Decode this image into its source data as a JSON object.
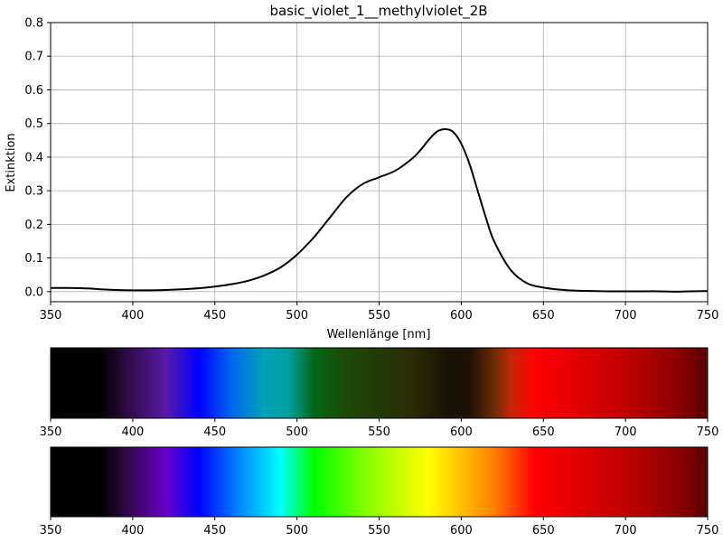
{
  "chart_data": [
    {
      "type": "line",
      "title": "basic_violet_1__methylviolet_2B",
      "xlabel": "Wellenlänge [nm]",
      "ylabel": "Extinktion",
      "xlim": [
        350,
        750
      ],
      "ylim": [
        -0.03,
        0.8
      ],
      "grid": true,
      "x_ticks": [
        350,
        400,
        450,
        500,
        550,
        600,
        650,
        700,
        750
      ],
      "y_ticks": [
        0.0,
        0.1,
        0.2,
        0.3,
        0.4,
        0.5,
        0.6,
        0.7,
        0.8
      ],
      "line_color": "#000000",
      "series": [
        {
          "x": [
            350,
            360,
            370,
            375,
            380,
            390,
            400,
            410,
            420,
            430,
            440,
            450,
            460,
            470,
            480,
            490,
            500,
            510,
            520,
            530,
            540,
            550,
            560,
            570,
            575,
            580,
            585,
            590,
            595,
            600,
            605,
            610,
            615,
            620,
            630,
            640,
            650,
            660,
            670,
            680,
            690,
            700,
            710,
            720,
            730,
            740,
            750
          ],
          "y": [
            0.011,
            0.011,
            0.01,
            0.009,
            0.007,
            0.005,
            0.004,
            0.004,
            0.005,
            0.007,
            0.01,
            0.015,
            0.022,
            0.032,
            0.048,
            0.072,
            0.11,
            0.16,
            0.22,
            0.28,
            0.32,
            0.34,
            0.36,
            0.395,
            0.42,
            0.45,
            0.475,
            0.483,
            0.475,
            0.44,
            0.38,
            0.3,
            0.22,
            0.15,
            0.065,
            0.025,
            0.012,
            0.006,
            0.003,
            0.002,
            0.001,
            0.001,
            0.001,
            0.001,
            0.0,
            0.001,
            0.002
          ]
        }
      ]
    },
    {
      "type": "heatmap",
      "x_ticks": [
        350,
        400,
        450,
        500,
        550,
        600,
        650,
        700,
        750
      ],
      "xlim": [
        350,
        750
      ],
      "stops": [
        {
          "x": 350,
          "color": "#000000"
        },
        {
          "x": 380,
          "color": "#000000"
        },
        {
          "x": 395,
          "color": "#2a0a3a"
        },
        {
          "x": 420,
          "color": "#5a1aa6"
        },
        {
          "x": 440,
          "color": "#0000ff"
        },
        {
          "x": 460,
          "color": "#0066ee"
        },
        {
          "x": 480,
          "color": "#00a3b8"
        },
        {
          "x": 495,
          "color": "#00a0a0"
        },
        {
          "x": 510,
          "color": "#006818"
        },
        {
          "x": 530,
          "color": "#1e4a06"
        },
        {
          "x": 550,
          "color": "#223a08"
        },
        {
          "x": 570,
          "color": "#2a2c06"
        },
        {
          "x": 590,
          "color": "#1a1406"
        },
        {
          "x": 605,
          "color": "#1e1004"
        },
        {
          "x": 620,
          "color": "#6a2c06"
        },
        {
          "x": 630,
          "color": "#c02806"
        },
        {
          "x": 645,
          "color": "#ff0000"
        },
        {
          "x": 700,
          "color": "#c00000"
        },
        {
          "x": 730,
          "color": "#900000"
        },
        {
          "x": 750,
          "color": "#5a0000"
        }
      ]
    },
    {
      "type": "heatmap",
      "x_ticks": [
        350,
        400,
        450,
        500,
        550,
        600,
        650,
        700,
        750
      ],
      "xlim": [
        350,
        750
      ],
      "stops": [
        {
          "x": 350,
          "color": "#000000"
        },
        {
          "x": 380,
          "color": "#000000"
        },
        {
          "x": 395,
          "color": "#2c0a40"
        },
        {
          "x": 420,
          "color": "#6a00c8"
        },
        {
          "x": 440,
          "color": "#0000ff"
        },
        {
          "x": 465,
          "color": "#0088ff"
        },
        {
          "x": 490,
          "color": "#00ffff"
        },
        {
          "x": 510,
          "color": "#00ff00"
        },
        {
          "x": 545,
          "color": "#90ff00"
        },
        {
          "x": 580,
          "color": "#ffff00"
        },
        {
          "x": 620,
          "color": "#ff8000"
        },
        {
          "x": 645,
          "color": "#ff0000"
        },
        {
          "x": 700,
          "color": "#c00000"
        },
        {
          "x": 730,
          "color": "#900000"
        },
        {
          "x": 750,
          "color": "#5a0000"
        }
      ]
    }
  ]
}
